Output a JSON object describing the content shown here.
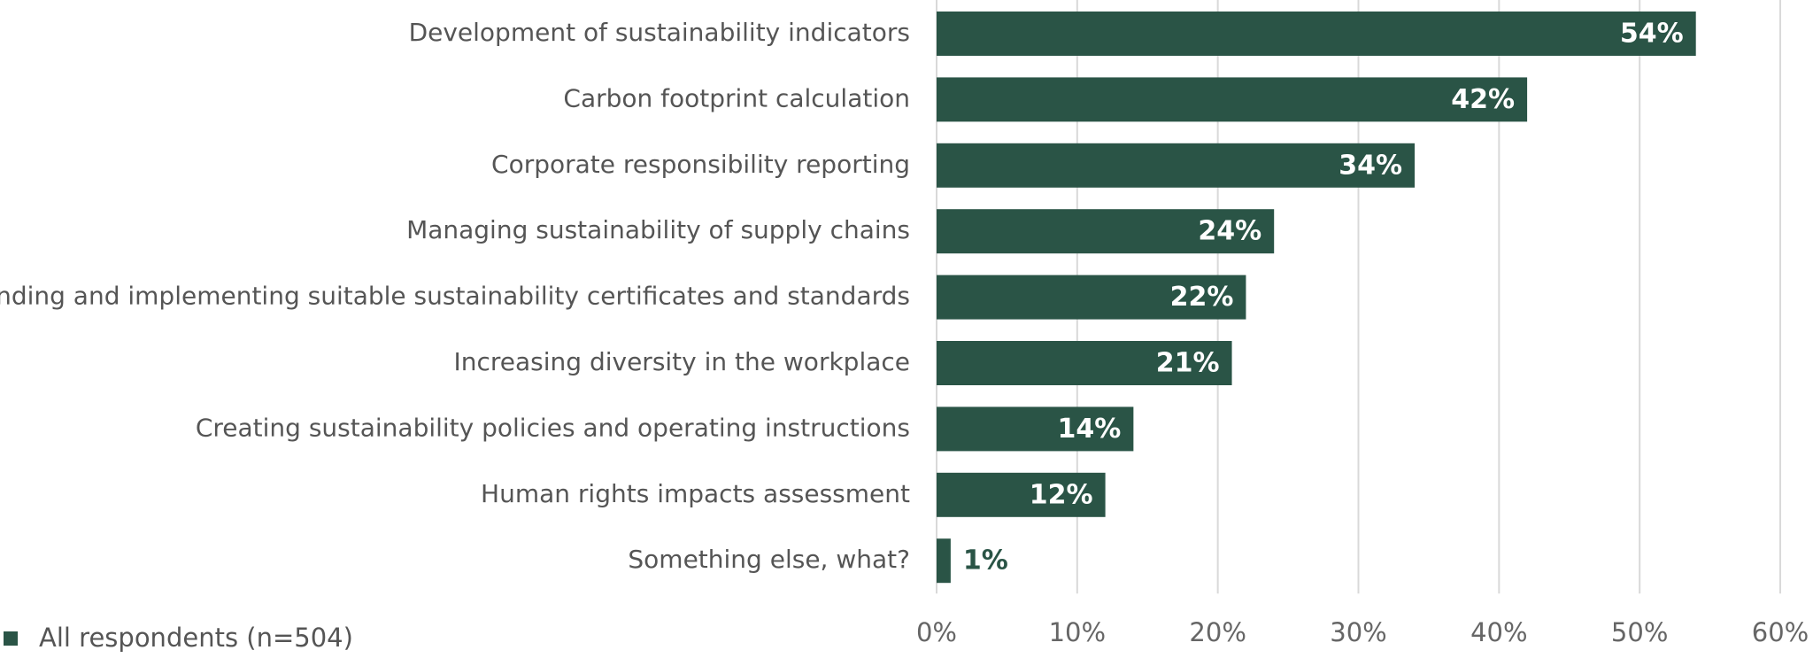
{
  "chart_data": {
    "type": "barh",
    "categories": [
      "Development of sustainability indicators",
      "Carbon footprint calculation",
      "Corporate responsibility reporting",
      "Managing sustainability of supply chains",
      "Finding and implementing suitable sustainability certificates and standards",
      "Increasing diversity in the workplace",
      "Creating sustainability policies and operating instructions",
      "Human rights impacts assessment",
      "Something else, what?"
    ],
    "series": [
      {
        "name": "All respondents (n=504)",
        "color": "#2a5446",
        "values": [
          54,
          42,
          34,
          24,
          22,
          21,
          14,
          12,
          1
        ],
        "value_labels": [
          "54%",
          "42%",
          "34%",
          "24%",
          "22%",
          "21%",
          "14%",
          "12%",
          "1%"
        ]
      }
    ],
    "xlim": [
      0,
      60
    ],
    "xticks": [
      {
        "value": 0,
        "label": "0%"
      },
      {
        "value": 10,
        "label": "10%"
      },
      {
        "value": 20,
        "label": "20%"
      },
      {
        "value": 30,
        "label": "30%"
      },
      {
        "value": 40,
        "label": "40%"
      },
      {
        "value": 50,
        "label": "50%"
      },
      {
        "value": 60,
        "label": "60%"
      }
    ],
    "grid": true,
    "legend": "bottom-left"
  }
}
